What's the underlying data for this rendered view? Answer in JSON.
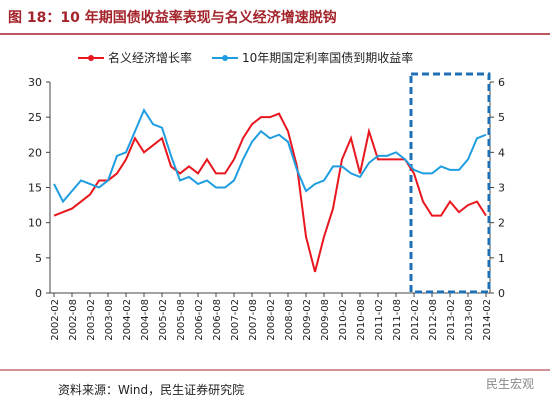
{
  "chart_data": {
    "type": "line",
    "title": "图 18：10 年期国债收益率表现与名义经济增速脱钩",
    "source": "资料来源：Wind，民生证券研究院",
    "watermark": "民生宏观",
    "categories": [
      "2002-02",
      null,
      "2002-08",
      null,
      "2003-02",
      null,
      "2003-08",
      null,
      "2004-02",
      null,
      "2004-08",
      null,
      "2005-02",
      null,
      "2005-08",
      null,
      "2006-02",
      null,
      "2006-08",
      null,
      "2007-02",
      null,
      "2007-08",
      null,
      "2008-02",
      null,
      "2008-08",
      null,
      "2009-02",
      null,
      "2009-08",
      null,
      "2010-02",
      null,
      "2010-08",
      null,
      "2011-02",
      null,
      "2011-08",
      null,
      "2012-02",
      null,
      "2012-08",
      null,
      "2013-02",
      null,
      "2013-08",
      null,
      "2014-02"
    ],
    "series": [
      {
        "name": "名义经济增长率",
        "color": "#e8161e",
        "values": [
          11,
          11.5,
          12,
          13,
          14,
          16,
          16,
          17,
          19,
          22,
          20,
          21,
          22,
          18,
          17,
          18,
          17,
          19,
          17,
          17,
          19,
          22,
          24,
          25,
          25,
          25.5,
          23,
          18,
          8,
          3,
          8,
          12,
          19,
          22,
          17,
          23,
          19,
          19,
          19,
          19,
          17,
          13,
          11,
          11,
          13,
          11.5,
          12.5,
          13,
          11
        ]
      },
      {
        "name": "10年期国定利率国债到期收益率",
        "color": "#1f9de0",
        "axis": "y2",
        "values": [
          3.1,
          2.6,
          2.9,
          3.2,
          3.1,
          3.0,
          3.2,
          3.9,
          4.0,
          4.6,
          5.2,
          4.8,
          4.7,
          3.9,
          3.2,
          3.3,
          3.1,
          3.2,
          3.0,
          3.0,
          3.2,
          3.8,
          4.3,
          4.6,
          4.4,
          4.5,
          4.3,
          3.5,
          2.9,
          3.1,
          3.2,
          3.6,
          3.6,
          3.4,
          3.3,
          3.7,
          3.9,
          3.9,
          4.0,
          3.8,
          3.5,
          3.4,
          3.4,
          3.6,
          3.5,
          3.5,
          3.8,
          4.4,
          4.5
        ]
      }
    ],
    "ylim": [
      0,
      30
    ],
    "yticks": [
      0,
      5,
      10,
      15,
      20,
      25,
      30
    ],
    "y2lim": [
      0,
      6
    ],
    "y2ticks": [
      0,
      1,
      2,
      3,
      4,
      5,
      6
    ],
    "legend": "top"
  }
}
